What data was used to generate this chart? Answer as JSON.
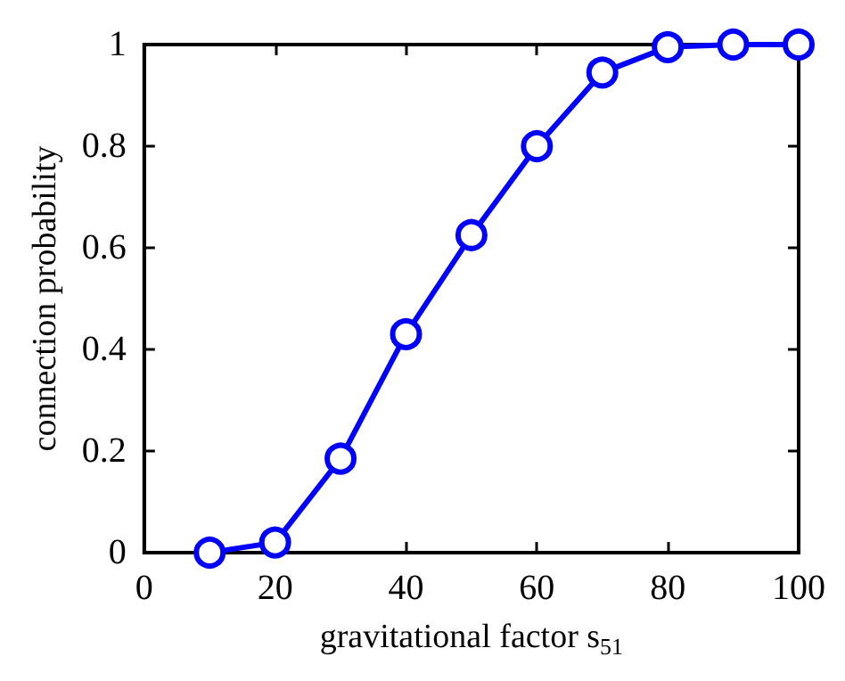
{
  "chart_data": {
    "type": "line",
    "xlabel": "gravitational factor s$_{51}$",
    "ylabel": "connection probability",
    "x": [
      10,
      20,
      30,
      40,
      50,
      60,
      70,
      80,
      90,
      100
    ],
    "series": [
      {
        "color": "#0000ff",
        "values": [
          0,
          0.02,
          0.185,
          0.43,
          0.625,
          0.8,
          0.945,
          0.995,
          1,
          1
        ]
      }
    ],
    "xlim": [
      0,
      100
    ],
    "xticks": [
      0,
      20,
      40,
      60,
      80,
      100
    ],
    "ylim": [
      0,
      1
    ],
    "yticks": [
      0,
      0.2,
      0.4,
      0.6,
      0.8,
      1
    ],
    "grid": false,
    "marker": "circle",
    "line_style": "solid"
  }
}
